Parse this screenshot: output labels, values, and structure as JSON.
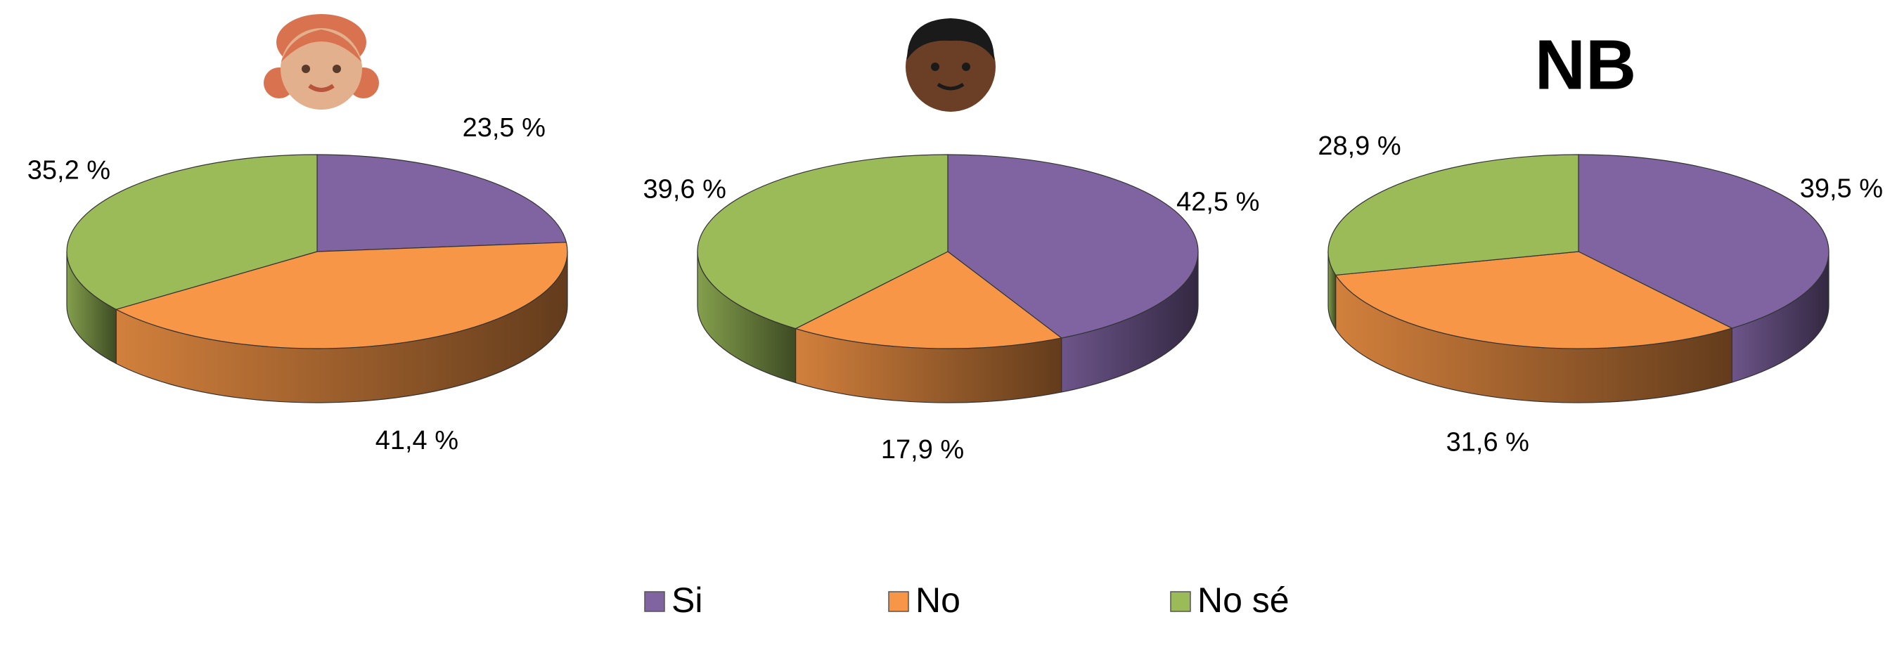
{
  "chart_data": [
    {
      "type": "pie",
      "categories": [
        "Si",
        "No",
        "No sé"
      ],
      "values": [
        23.5,
        41.4,
        35.2
      ],
      "value_labels": [
        "23,5 %",
        "41,4 %",
        "35,2 %"
      ],
      "colors": [
        "#8064a2",
        "#f79646",
        "#9bbb59"
      ]
    },
    {
      "type": "pie",
      "categories": [
        "Si",
        "No",
        "No sé"
      ],
      "values": [
        42.5,
        17.9,
        39.6
      ],
      "value_labels": [
        "42,5 %",
        "17,9 %",
        "39,6 %"
      ],
      "colors": [
        "#8064a2",
        "#f79646",
        "#9bbb59"
      ]
    },
    {
      "type": "pie",
      "title": "NB",
      "categories": [
        "Si",
        "No",
        "No sé"
      ],
      "values": [
        39.5,
        31.6,
        28.9
      ],
      "value_labels": [
        "39,5 %",
        "31,6 %",
        "28,9 %"
      ],
      "colors": [
        "#8064a2",
        "#f79646",
        "#9bbb59"
      ]
    }
  ]
}
